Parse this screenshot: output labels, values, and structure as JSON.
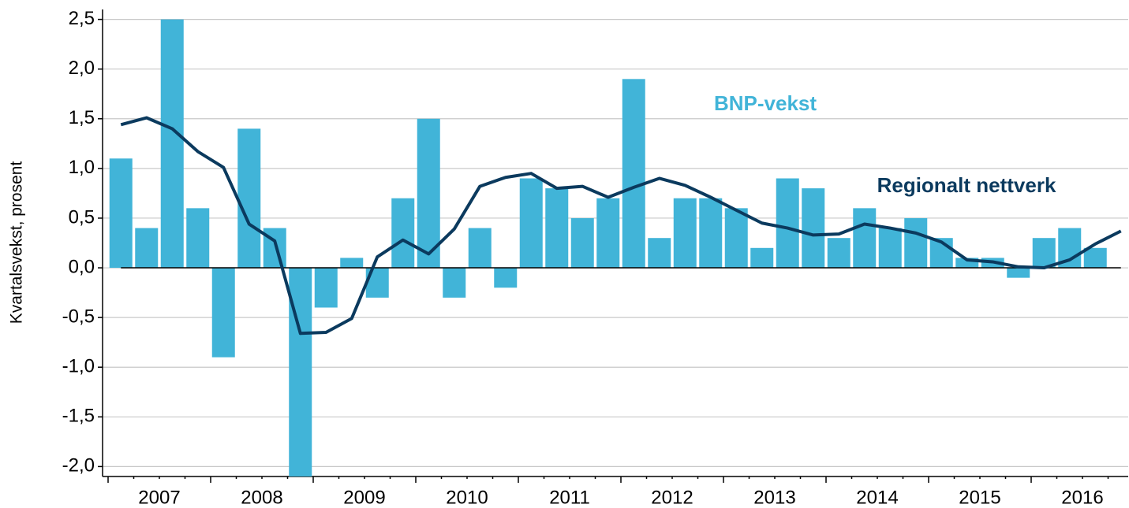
{
  "chart_data": {
    "type": "bar_line",
    "ylabel": "Kvartalsvekst, prosent",
    "categories": [
      "2007",
      null,
      null,
      null,
      "2008",
      null,
      null,
      null,
      "2009",
      null,
      null,
      null,
      "2010",
      null,
      null,
      null,
      "2011",
      null,
      null,
      null,
      "2012",
      null,
      null,
      null,
      "2013",
      null,
      null,
      null,
      "2014",
      null,
      null,
      null,
      "2015",
      null,
      null,
      null,
      "2016",
      null,
      null,
      null
    ],
    "series": [
      {
        "name": "BNP-vekst",
        "type": "bar",
        "color": "#41b4d8",
        "values": [
          1.1,
          0.4,
          2.5,
          0.6,
          -0.9,
          1.4,
          0.4,
          -2.1,
          -0.4,
          0.1,
          -0.3,
          0.7,
          1.5,
          -0.3,
          0.4,
          -0.2,
          0.9,
          0.8,
          0.5,
          0.7,
          1.9,
          0.3,
          0.7,
          0.7,
          0.6,
          0.2,
          0.9,
          0.8,
          0.3,
          0.6,
          0.4,
          0.5,
          0.3,
          0.1,
          0.1,
          -0.1,
          0.3,
          0.4,
          0.2,
          null
        ]
      },
      {
        "name": "Regionalt nettverk",
        "type": "line",
        "color": "#0b3a5e",
        "values": [
          1.44,
          1.51,
          1.4,
          1.17,
          1.01,
          0.44,
          0.27,
          -0.66,
          -0.65,
          -0.51,
          0.11,
          0.28,
          0.14,
          0.39,
          0.82,
          0.91,
          0.95,
          0.8,
          0.82,
          0.71,
          0.81,
          0.9,
          0.83,
          0.71,
          0.58,
          0.45,
          0.4,
          0.33,
          0.34,
          0.44,
          0.4,
          0.35,
          0.26,
          0.08,
          0.06,
          0.01,
          0.0,
          0.08,
          0.24,
          0.37
        ]
      }
    ],
    "ylim": [
      -2.1,
      2.6
    ],
    "yticks": [
      {
        "value": -2.0,
        "label": "-2,0"
      },
      {
        "value": -1.5,
        "label": "-1,5"
      },
      {
        "value": -1.0,
        "label": "-1,0"
      },
      {
        "value": -0.5,
        "label": "-0,5"
      },
      {
        "value": 0.0,
        "label": "0,0"
      },
      {
        "value": 0.5,
        "label": "0,5"
      },
      {
        "value": 1.0,
        "label": "1,0"
      },
      {
        "value": 1.5,
        "label": "1,5"
      },
      {
        "value": 2.0,
        "label": "2,0"
      },
      {
        "value": 2.5,
        "label": "2,5"
      }
    ],
    "grid": true
  }
}
